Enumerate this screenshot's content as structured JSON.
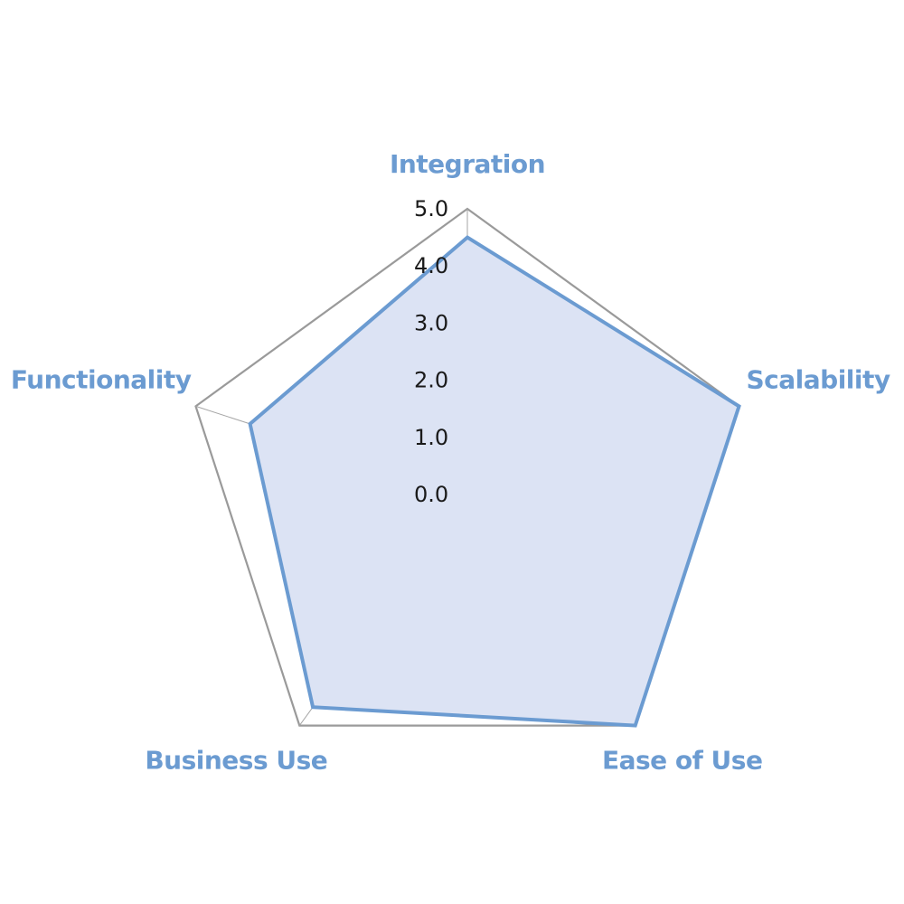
{
  "chart_data": {
    "type": "radar",
    "title": "",
    "categories": [
      "Integration",
      "Scalability",
      "Ease of Use",
      "Business Use",
      "Functionality"
    ],
    "series": [
      {
        "values": [
          4.5,
          5.0,
          5.0,
          4.6,
          4.0
        ],
        "fill_color": "#dce3f4",
        "line_color": "#6b9bd1"
      }
    ],
    "r_range": [
      0,
      5
    ],
    "ticks": [
      "0.0",
      "1.0",
      "2.0",
      "3.0",
      "4.0",
      "5.0"
    ],
    "grid": true,
    "label_color": "#6b9bd1"
  }
}
